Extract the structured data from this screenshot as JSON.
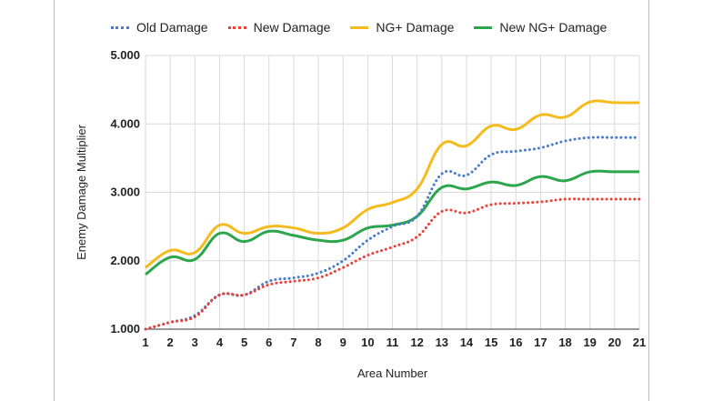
{
  "chart_data": {
    "type": "line",
    "title": "",
    "xlabel": "Area Number",
    "ylabel": "Enemy Damage Multiplier",
    "x": [
      1,
      2,
      3,
      4,
      5,
      6,
      7,
      8,
      9,
      10,
      11,
      12,
      13,
      14,
      15,
      16,
      17,
      18,
      19,
      20,
      21
    ],
    "ylim": [
      1.0,
      5.0
    ],
    "yticks": [
      "1.000",
      "2.000",
      "3.000",
      "4.000",
      "5.000"
    ],
    "xticks": [
      "1",
      "2",
      "3",
      "4",
      "5",
      "6",
      "7",
      "8",
      "9",
      "10",
      "11",
      "12",
      "13",
      "14",
      "15",
      "16",
      "17",
      "18",
      "19",
      "20",
      "21"
    ],
    "grid": true,
    "legend_position": "top",
    "series": [
      {
        "name": "Old Damage",
        "color": "#4a7cc9",
        "style": "dotted",
        "values": [
          1.0,
          1.1,
          1.2,
          1.5,
          1.5,
          1.7,
          1.75,
          1.82,
          2.0,
          2.3,
          2.5,
          2.65,
          3.27,
          3.25,
          3.55,
          3.6,
          3.65,
          3.75,
          3.8,
          3.8,
          3.8
        ]
      },
      {
        "name": "New Damage",
        "color": "#e8423a",
        "style": "dotted",
        "values": [
          1.0,
          1.1,
          1.18,
          1.5,
          1.5,
          1.65,
          1.7,
          1.75,
          1.9,
          2.08,
          2.2,
          2.35,
          2.72,
          2.7,
          2.82,
          2.84,
          2.86,
          2.9,
          2.9,
          2.9,
          2.9
        ]
      },
      {
        "name": "NG+ Damage",
        "color": "#f5bb1c",
        "style": "solid",
        "values": [
          1.9,
          2.15,
          2.12,
          2.52,
          2.4,
          2.5,
          2.48,
          2.4,
          2.48,
          2.75,
          2.85,
          3.05,
          3.7,
          3.68,
          3.97,
          3.92,
          4.13,
          4.1,
          4.32,
          4.31,
          4.31
        ]
      },
      {
        "name": "New NG+ Damage",
        "color": "#2ca64c",
        "style": "solid",
        "values": [
          1.8,
          2.05,
          2.02,
          2.4,
          2.28,
          2.43,
          2.37,
          2.3,
          2.3,
          2.48,
          2.52,
          2.65,
          3.07,
          3.05,
          3.15,
          3.1,
          3.23,
          3.17,
          3.3,
          3.3,
          3.3
        ]
      }
    ]
  }
}
